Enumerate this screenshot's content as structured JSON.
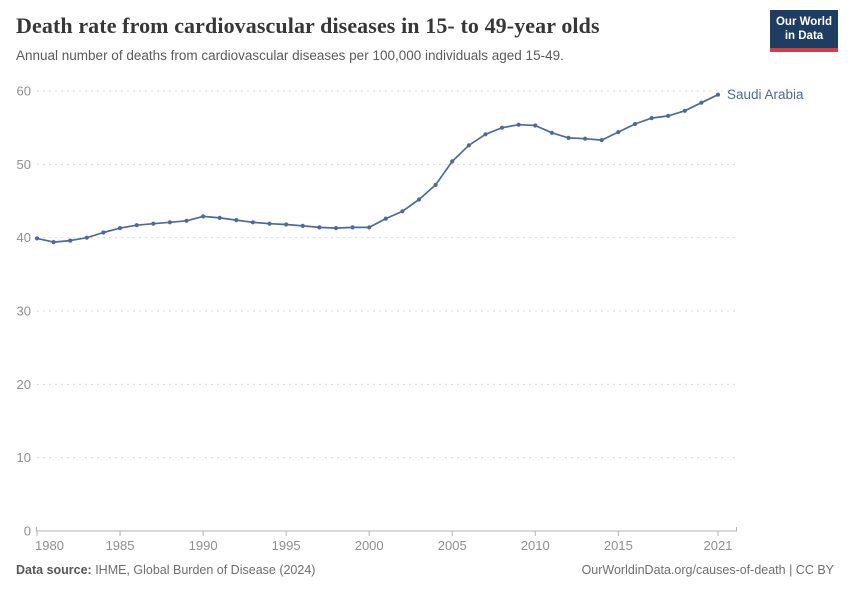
{
  "header": {
    "title": "Death rate from cardiovascular diseases in 15- to 49-year olds",
    "subtitle": "Annual number of deaths from cardiovascular diseases per 100,000 individuals aged 15-49.",
    "logo": {
      "line1": "Our World",
      "line2": "in Data",
      "bg_color": "#1d3d63",
      "accent_color": "#d23c43"
    }
  },
  "chart_data": {
    "type": "line",
    "title": "Death rate from cardiovascular diseases in 15- to 49-year olds",
    "xlabel": "",
    "ylabel": "",
    "xlim": [
      1980,
      2021
    ],
    "ylim": [
      0,
      60
    ],
    "yticks": [
      0,
      10,
      20,
      30,
      40,
      50,
      60
    ],
    "xticks": [
      1980,
      1985,
      1990,
      1995,
      2000,
      2005,
      2010,
      2015,
      2021
    ],
    "grid": "horizontal-dashed",
    "legend_position": "end-of-line-label",
    "colors": {
      "line": "#4c6a9c",
      "grid": "#dadada",
      "axis": "#b3b3b3",
      "tick_label": "#8f8f8f"
    },
    "series": [
      {
        "name": "Saudi Arabia",
        "color": "#4c6a9c",
        "x": [
          1980,
          1981,
          1982,
          1983,
          1984,
          1985,
          1986,
          1987,
          1988,
          1989,
          1990,
          1991,
          1992,
          1993,
          1994,
          1995,
          1996,
          1997,
          1998,
          1999,
          2000,
          2001,
          2002,
          2003,
          2004,
          2005,
          2006,
          2007,
          2008,
          2009,
          2010,
          2011,
          2012,
          2013,
          2014,
          2015,
          2016,
          2017,
          2018,
          2019,
          2020,
          2021
        ],
        "values": [
          39.9,
          39.4,
          39.6,
          40.0,
          40.7,
          41.3,
          41.7,
          41.9,
          42.1,
          42.3,
          42.9,
          42.7,
          42.4,
          42.1,
          41.9,
          41.8,
          41.6,
          41.4,
          41.3,
          41.4,
          41.4,
          42.6,
          43.6,
          45.2,
          47.2,
          50.4,
          52.6,
          54.1,
          55.0,
          55.4,
          55.3,
          54.3,
          53.6,
          53.5,
          53.3,
          54.4,
          55.5,
          56.3,
          56.6,
          57.3,
          58.4,
          59.5
        ]
      }
    ]
  },
  "footer": {
    "datasource_label": "Data source:",
    "datasource_text": " IHME, Global Burden of Disease (2024)",
    "link": "OurWorldinData.org/causes-of-death | CC BY"
  }
}
